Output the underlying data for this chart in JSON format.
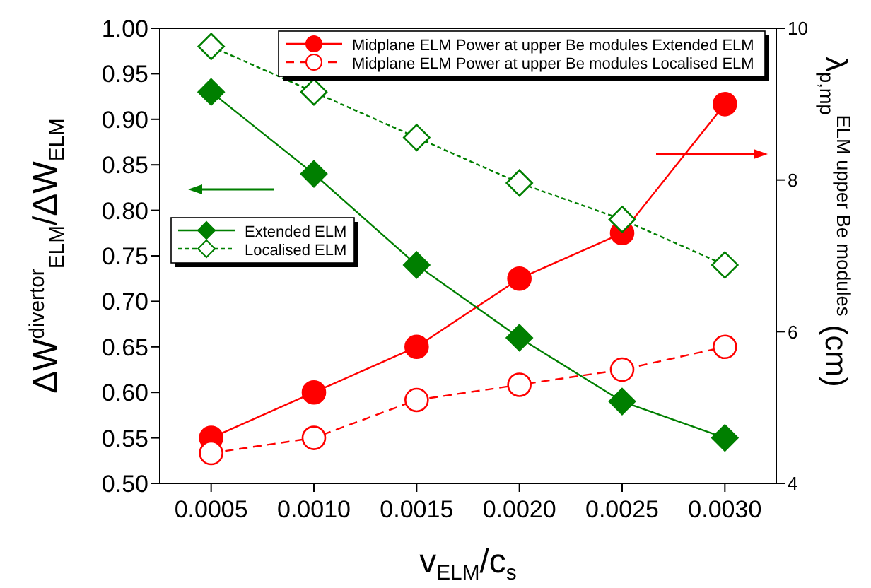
{
  "chart_data": {
    "type": "line",
    "xlabel": "v$_{ELM}$/c$_{s}$",
    "ylabel": "ΔW$^{divertor}$$_{ELM}$/ΔW$_{ELM}$",
    "y2label": "λ$_{p,mp}$$^{ELM upper Be modules}$ (cm)",
    "x": [
      0.0005,
      0.001,
      0.0015,
      0.002,
      0.0025,
      0.003
    ],
    "series": [
      {
        "name": "Midplane ELM Power at upper Be modules Extended ELM",
        "color": "#ff0000",
        "axis": "y2",
        "marker": "circle",
        "line_style": "solid",
        "values": [
          4.6,
          5.2,
          5.8,
          6.7,
          7.3,
          9.0
        ]
      },
      {
        "name": "Midplane ELM Power at upper Be modules Localised ELM",
        "color": "#ff0000",
        "axis": "y2",
        "marker": "circle",
        "line_style": "dashed",
        "values": [
          4.4,
          4.6,
          5.1,
          5.3,
          5.5,
          5.8
        ]
      },
      {
        "name": "Extended ELM",
        "color": "#007f00",
        "marker": "diamond",
        "line_style": "solid",
        "values": [
          0.93,
          0.84,
          0.74,
          0.66,
          0.59,
          0.55
        ]
      },
      {
        "name": "Localised ELM",
        "color": "#007f00",
        "marker": "diamond",
        "line_style": "dotted",
        "values": [
          0.98,
          0.93,
          0.88,
          0.83,
          0.79,
          0.74
        ]
      }
    ],
    "xlim": [
      0.00025,
      0.00325
    ],
    "xticks": [
      0.0005,
      {
        "value": 0.001,
        "label": "0.0010"
      },
      0.0015,
      {
        "value": 0.002,
        "label": "0.0020"
      },
      0.0025,
      {
        "value": 0.003,
        "label": "0.0030"
      }
    ],
    "ylim": [
      0.5,
      1.0
    ],
    "yticks": [
      {
        "value": 0.5,
        "label": "0.50"
      },
      0.55,
      {
        "value": 0.6,
        "label": "0.60"
      },
      0.65,
      {
        "value": 0.7,
        "label": "0.70"
      },
      0.75,
      {
        "value": 0.8,
        "label": "0.80"
      },
      0.85,
      {
        "value": 0.9,
        "label": "0.90"
      },
      0.95,
      {
        "value": 1.0,
        "label": "1.00"
      }
    ],
    "y2lim": [
      4,
      10
    ],
    "y2ticks": [
      4,
      6,
      8,
      10
    ],
    "legend": "top right",
    "grid": false
  }
}
